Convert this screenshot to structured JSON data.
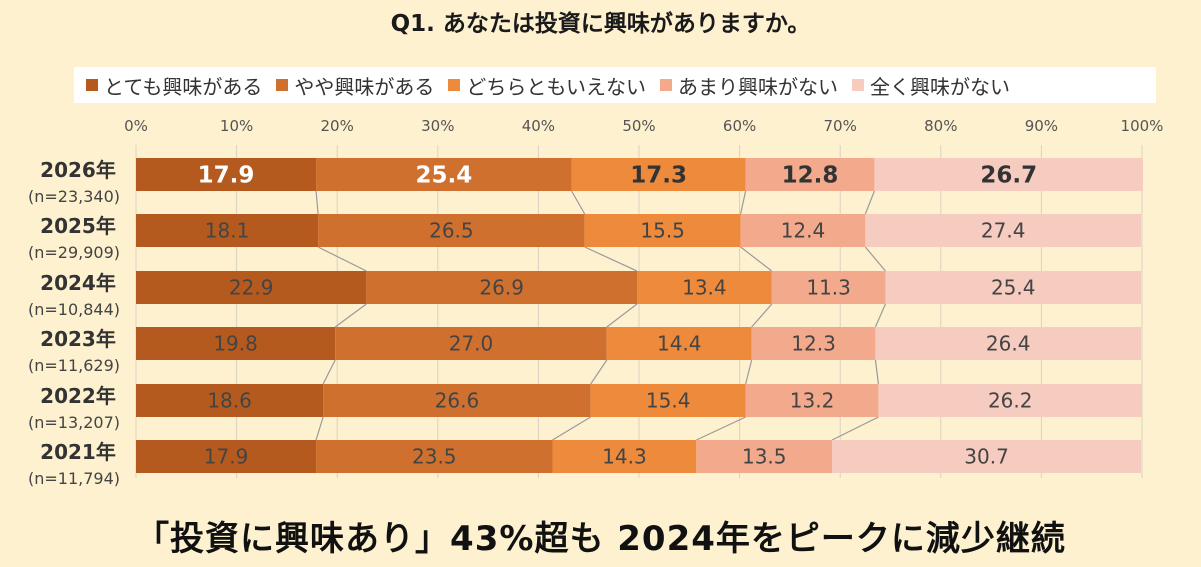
{
  "chart_data": {
    "type": "bar",
    "orientation": "horizontal-stacked-100",
    "title": "Q1. あなたは投資に興味がありますか。",
    "categories": [
      "2026年",
      "2025年",
      "2024年",
      "2023年",
      "2022年",
      "2021年"
    ],
    "sample_sizes": [
      "(n=23,340)",
      "(n=29,909)",
      "(n=10,844)",
      "(n=11,629)",
      "(n=13,207)",
      "(n=11,794)"
    ],
    "series": [
      {
        "name": "とても興味がある",
        "color": "#b55a1e",
        "values": [
          17.9,
          18.1,
          22.9,
          19.8,
          18.6,
          17.9
        ]
      },
      {
        "name": "やや興味がある",
        "color": "#d0702f",
        "values": [
          25.4,
          26.5,
          26.9,
          27.0,
          26.6,
          23.5
        ]
      },
      {
        "name": "どちらともいえない",
        "color": "#ee8a3c",
        "values": [
          17.3,
          15.5,
          13.4,
          14.4,
          15.4,
          14.3
        ]
      },
      {
        "name": "あまり興味がない",
        "color": "#f2a98c",
        "values": [
          12.8,
          12.4,
          11.3,
          12.3,
          13.2,
          13.5
        ]
      },
      {
        "name": "全く興味がない",
        "color": "#f6cbc0",
        "values": [
          26.7,
          27.4,
          25.4,
          26.4,
          26.2,
          30.7
        ]
      }
    ],
    "x_ticks": [
      "0%",
      "10%",
      "20%",
      "30%",
      "40%",
      "50%",
      "60%",
      "70%",
      "80%",
      "90%",
      "100%"
    ],
    "xlim": [
      0,
      100
    ],
    "legend_position": "top",
    "grid": true,
    "connector_lines": true
  },
  "headline": "「投資に興味あり」43%超も 2024年をピークに減少継続"
}
